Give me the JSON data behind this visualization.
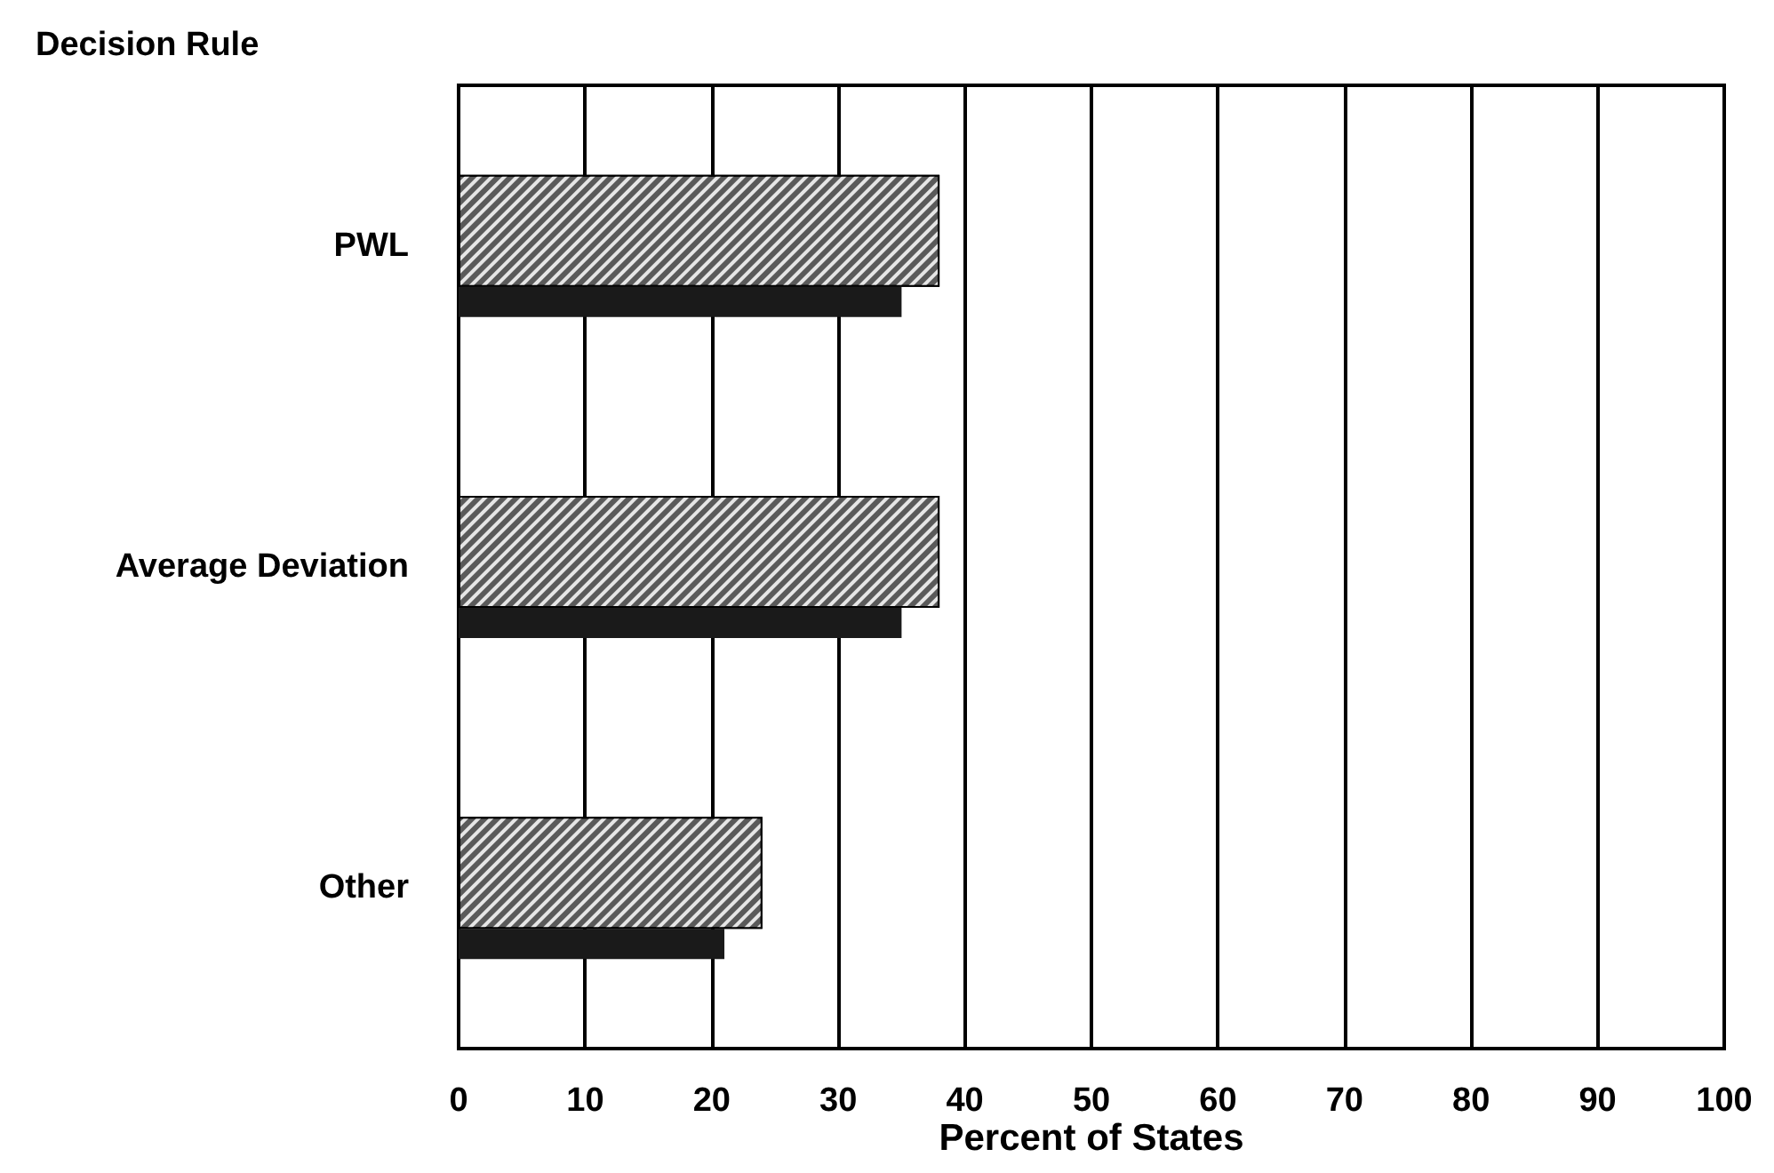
{
  "chart_data": {
    "type": "bar",
    "orientation": "horizontal",
    "ylabel": "Decision Rule",
    "xlabel": "Percent of States",
    "categories": [
      "PWL",
      "Average Deviation",
      "Other"
    ],
    "series": [
      {
        "color": "#5a5a5a",
        "values": [
          38,
          38,
          24
        ]
      },
      {
        "color": "#1a1a1a",
        "values": [
          35,
          35,
          21
        ]
      }
    ],
    "xlim": [
      0,
      100
    ],
    "xticks": [
      0,
      10,
      20,
      30,
      40,
      50,
      60,
      70,
      80,
      90,
      100
    ],
    "grid": "x"
  }
}
